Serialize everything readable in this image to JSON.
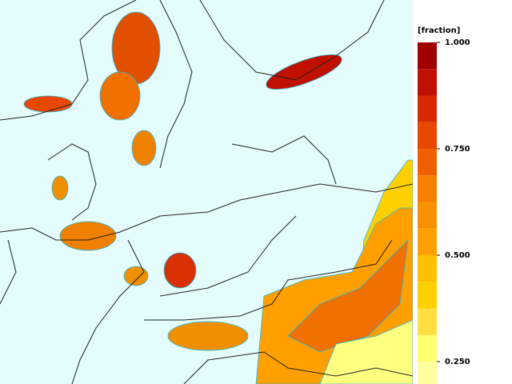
{
  "colorbar": {
    "label": "[fraction]",
    "lim": [
      0.2,
      1.0
    ],
    "levels": [
      0.1875,
      0.25,
      0.3125,
      0.375,
      0.4375,
      0.5,
      0.5625,
      0.625,
      0.6875,
      0.75,
      0.8125,
      0.875,
      0.9375,
      1.0
    ],
    "colors": [
      "#ffffa0",
      "#ffff70",
      "#ffe040",
      "#ffd000",
      "#ffc000",
      "#ffa000",
      "#f89000",
      "#f88000",
      "#f06000",
      "#e84800",
      "#d82800",
      "#c01000",
      "#a00000"
    ],
    "ticks": [
      {
        "value": 1.0,
        "label": "1.000"
      },
      {
        "value": 0.75,
        "label": "0.750"
      },
      {
        "value": 0.5,
        "label": "0.500"
      },
      {
        "value": 0.25,
        "label": "0.250"
      }
    ]
  }
}
